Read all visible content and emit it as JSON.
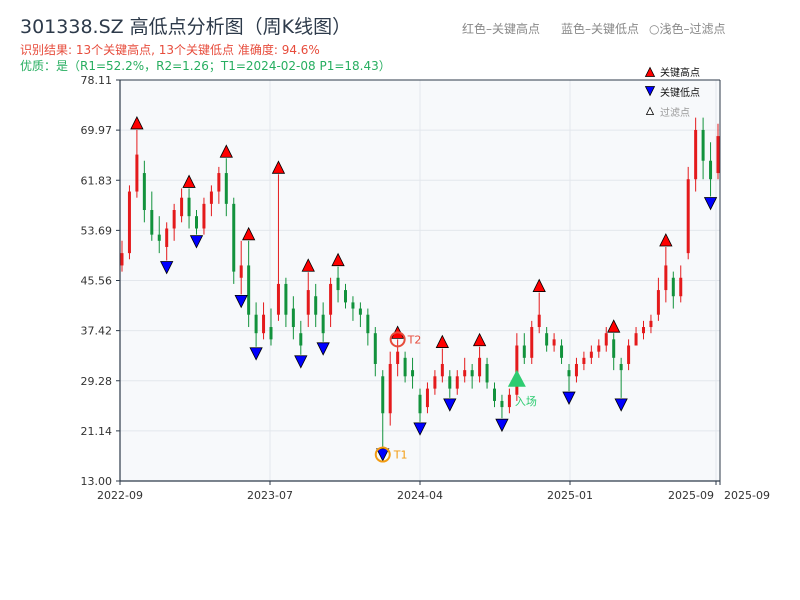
{
  "header": {
    "title": "301338.SZ 高低点分析图（周K线图）",
    "result": "识别结果: 13个关键高点, 13个关键低点   准确度: 94.6%",
    "quality": "优质：是（R1=52.2%，R2=1.26；T1=2024-02-08 P1=18.43）",
    "note_red": "红色–关键高点",
    "note_blue": "蓝色–关键低点",
    "note_filtered": "○浅色–过滤点"
  },
  "chart_data": {
    "type": "candlestick",
    "ylim": [
      13.0,
      78.11
    ],
    "yticks": [
      "13.00",
      "21.14",
      "29.28",
      "37.42",
      "45.56",
      "53.69",
      "61.83",
      "69.97",
      "78.11"
    ],
    "xticks": [
      "2022-09",
      "2023-07",
      "2024-04",
      "2025-01",
      "2025-09",
      "2025-09"
    ],
    "xrange": [
      "2022-09",
      "2025-09"
    ],
    "grid": true,
    "legend": {
      "placement": "top-right",
      "items": [
        "关键高点",
        "关键低点",
        "过滤点"
      ]
    },
    "colors": {
      "up": "#e41a1c",
      "down": "#12923c",
      "high": "#ff0000",
      "low": "#0000ff",
      "entry": "#2ecc71",
      "t1": "#f39c12",
      "t2": "#e74c3c"
    },
    "candles_ohlc": [
      [
        48,
        52,
        47,
        50
      ],
      [
        50,
        61,
        49,
        60
      ],
      [
        60,
        70,
        59,
        66
      ],
      [
        63,
        65,
        55,
        57
      ],
      [
        57,
        60,
        52,
        53
      ],
      [
        53,
        56,
        50,
        52
      ],
      [
        51,
        55,
        48.8,
        54
      ],
      [
        54,
        58,
        52,
        57
      ],
      [
        56,
        60.5,
        55,
        59
      ],
      [
        59,
        60.5,
        54,
        56
      ],
      [
        56,
        57,
        53,
        54
      ],
      [
        54,
        59,
        53,
        58
      ],
      [
        58,
        61,
        56,
        60
      ],
      [
        60,
        64,
        58,
        63
      ],
      [
        63,
        65.4,
        56,
        58
      ],
      [
        58,
        59,
        45,
        47
      ],
      [
        46,
        52,
        43.3,
        48
      ],
      [
        48,
        52,
        38,
        40
      ],
      [
        40,
        42,
        34.8,
        37
      ],
      [
        37,
        42,
        36,
        40
      ],
      [
        38,
        41,
        35,
        36
      ],
      [
        40,
        62.8,
        39,
        45
      ],
      [
        45,
        46,
        38,
        40
      ],
      [
        41,
        43,
        36,
        38
      ],
      [
        37,
        39,
        33.5,
        35
      ],
      [
        40,
        46.9,
        38,
        44
      ],
      [
        43,
        45,
        38,
        40
      ],
      [
        40,
        42,
        35.6,
        37
      ],
      [
        40,
        46,
        38,
        45
      ],
      [
        46,
        47.8,
        42,
        44
      ],
      [
        44,
        45,
        41,
        42
      ],
      [
        42,
        43,
        39,
        41
      ],
      [
        41,
        42,
        38,
        40
      ],
      [
        40,
        41,
        35,
        37
      ],
      [
        37,
        38,
        30,
        32
      ],
      [
        30,
        31,
        18.4,
        24
      ],
      [
        24,
        34,
        22,
        32
      ],
      [
        32,
        36,
        30,
        34
      ],
      [
        33,
        34,
        29,
        30
      ],
      [
        31,
        33,
        28,
        30
      ],
      [
        27,
        28,
        22.6,
        24
      ],
      [
        25,
        29,
        24,
        28
      ],
      [
        28,
        31,
        27,
        30
      ],
      [
        30,
        34.5,
        29,
        32
      ],
      [
        30,
        31,
        26.5,
        28
      ],
      [
        28,
        31,
        27,
        30
      ],
      [
        30,
        33,
        29,
        31
      ],
      [
        31,
        32,
        28,
        30
      ],
      [
        30,
        34.8,
        29,
        33
      ],
      [
        32,
        33,
        28,
        29
      ],
      [
        28,
        29,
        25,
        26
      ],
      [
        26,
        27,
        23.2,
        25
      ],
      [
        25,
        28,
        24,
        27
      ],
      [
        27,
        37,
        26,
        35
      ],
      [
        35,
        37,
        32,
        33
      ],
      [
        33,
        39,
        32,
        38
      ],
      [
        38,
        43.6,
        37,
        40
      ],
      [
        37,
        38,
        34,
        35
      ],
      [
        35,
        37,
        34,
        36
      ],
      [
        35,
        36,
        32,
        33
      ],
      [
        31,
        32,
        27.6,
        30
      ],
      [
        30,
        33,
        29,
        32
      ],
      [
        32,
        34,
        31,
        33
      ],
      [
        33,
        35,
        32,
        34
      ],
      [
        34,
        36,
        33,
        35
      ],
      [
        35,
        38,
        34,
        37
      ],
      [
        36,
        37,
        31,
        33
      ],
      [
        32,
        33,
        26.5,
        31
      ],
      [
        32,
        36,
        31,
        35
      ],
      [
        35,
        38,
        35,
        37
      ],
      [
        37,
        39,
        36,
        38
      ],
      [
        38,
        40,
        37,
        39
      ],
      [
        40,
        46,
        39,
        44
      ],
      [
        44,
        51,
        42,
        48
      ],
      [
        46,
        47,
        41,
        43
      ],
      [
        43,
        48,
        42,
        46
      ],
      [
        50,
        64,
        49,
        62
      ],
      [
        62,
        72,
        60,
        70
      ],
      [
        70,
        72,
        62,
        65
      ],
      [
        65,
        68,
        59.2,
        62
      ],
      [
        63,
        71,
        62,
        69
      ]
    ],
    "key_high_candles": [
      2,
      9,
      14,
      17,
      21,
      25,
      29,
      37,
      43,
      48,
      56,
      66,
      73
    ],
    "key_low_candles": [
      6,
      10,
      16,
      18,
      24,
      27,
      35,
      40,
      44,
      51,
      60,
      67,
      79
    ],
    "t1": {
      "label": "T1",
      "candle": 35,
      "price": 18.43
    },
    "t2": {
      "label": "T2",
      "candle": 37,
      "price": 36
    },
    "entry": {
      "label": "入场",
      "candle": 53,
      "price": 29.6
    }
  }
}
